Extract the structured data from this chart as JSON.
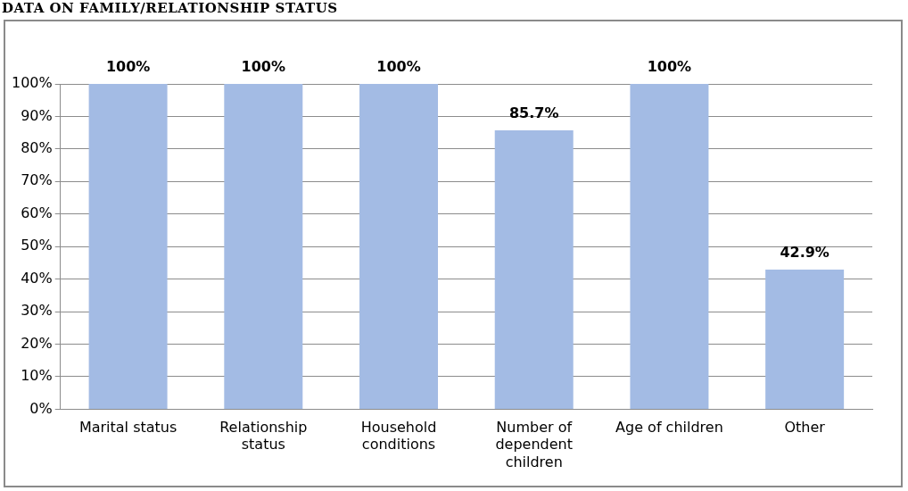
{
  "chart_data": {
    "type": "bar",
    "title": "DATA ON FAMILY/RELATIONSHIP STATUS",
    "categories": [
      "Marital status",
      "Relationship status",
      "Household conditions",
      "Number of dependent children",
      "Age of children",
      "Other"
    ],
    "values": [
      100,
      100,
      100,
      85.7,
      100,
      42.9
    ],
    "value_labels": [
      "100%",
      "100%",
      "100%",
      "85.7%",
      "100%",
      "42.9%"
    ],
    "color": "#a3bbe4",
    "ylim": [
      0,
      100
    ],
    "yticks": [
      {
        "value": 0,
        "label": "0%"
      },
      {
        "value": 10,
        "label": "10%"
      },
      {
        "value": 20,
        "label": "20%"
      },
      {
        "value": 30,
        "label": "30%"
      },
      {
        "value": 40,
        "label": "40%"
      },
      {
        "value": 50,
        "label": "50%"
      },
      {
        "value": 60,
        "label": "60%"
      },
      {
        "value": 70,
        "label": "70%"
      },
      {
        "value": 80,
        "label": "80%"
      },
      {
        "value": 90,
        "label": "90%"
      },
      {
        "value": 100,
        "label": "100%"
      }
    ],
    "grid": "y"
  }
}
